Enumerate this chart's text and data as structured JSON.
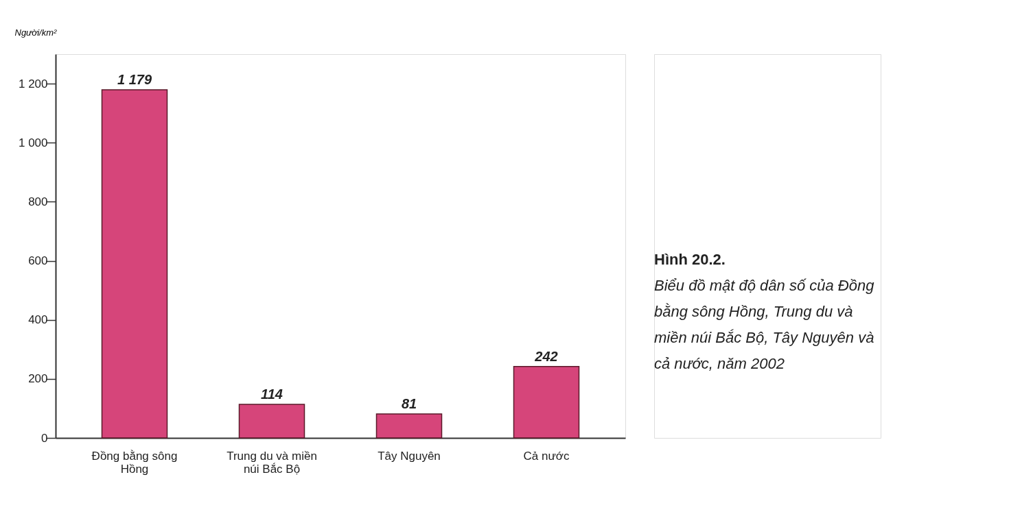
{
  "chart_data": {
    "type": "bar",
    "title": "Hình 20.2.",
    "subtitle": "Biểu đồ mật độ dân số của Đồng bằng sông Hồng, Trung du và miền núi Bắc Bộ, Tây Nguyên và cả nước, năm 2002",
    "ylabel": "Người/km²",
    "categories": [
      "Đồng bằng sông Hồng",
      "Trung du và miền núi Bắc Bộ",
      "Tây Nguyên",
      "Cả nước"
    ],
    "values": [
      1179,
      114,
      81,
      242
    ],
    "color": "#d6457a",
    "value_labels": [
      "1 179",
      "114",
      "81",
      "242"
    ],
    "ylim": [
      0,
      1300
    ],
    "yticks": [
      0,
      200,
      400,
      600,
      800,
      {
        "value": 1000,
        "label": "1 000"
      },
      {
        "value": 1200,
        "label": "1 200"
      }
    ],
    "grid": false
  }
}
